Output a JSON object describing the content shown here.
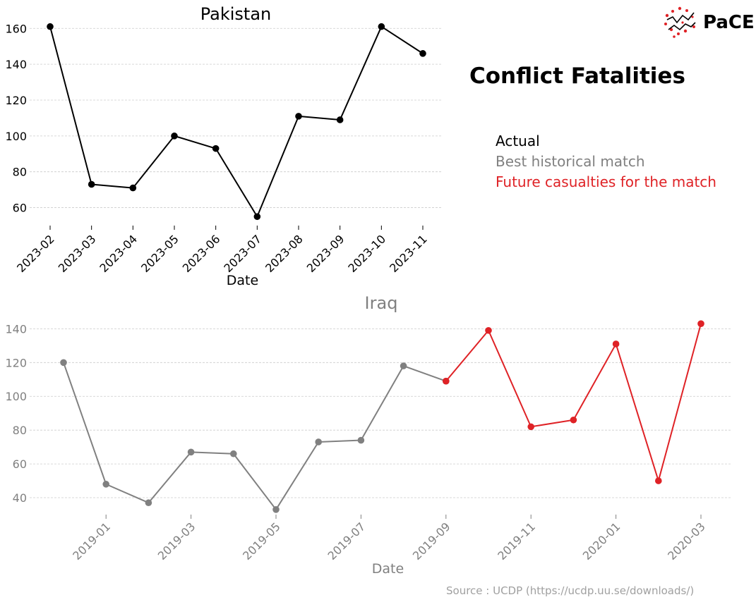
{
  "header": {
    "title": "Conflict Fatalities",
    "logo_text": "PaCE",
    "source": "Source : UCDP (https://ucdp.uu.se/downloads/)"
  },
  "legend": {
    "items": [
      {
        "label": "Actual",
        "color": "#000000"
      },
      {
        "label": "Best historical match",
        "color": "#808080"
      },
      {
        "label": "Future casualties for the match",
        "color": "#df2226"
      }
    ]
  },
  "colors": {
    "actual": "#000000",
    "match": "#808080",
    "future": "#df2226",
    "grid": "#cccccc"
  },
  "chart_data": [
    {
      "type": "line",
      "title": "Pakistan",
      "xlabel": "Date",
      "ylabel": "",
      "x_ticks": [
        "2023-02",
        "2023-03",
        "2023-04",
        "2023-05",
        "2023-06",
        "2023-07",
        "2023-08",
        "2023-09",
        "2023-10",
        "2023-11"
      ],
      "y_ticks": [
        60,
        80,
        100,
        120,
        140,
        160
      ],
      "ylim": [
        50,
        166
      ],
      "grid": "horizontal",
      "series": [
        {
          "color": "#000000",
          "x": [
            "2023-02",
            "2023-03",
            "2023-04",
            "2023-05",
            "2023-06",
            "2023-07",
            "2023-08",
            "2023-09",
            "2023-10",
            "2023-11"
          ],
          "values": [
            161,
            73,
            71,
            100,
            93,
            55,
            111,
            109,
            161,
            146
          ]
        }
      ]
    },
    {
      "type": "line",
      "title": "Iraq",
      "xlabel": "Date",
      "ylabel": "",
      "x_ticks": [
        "2019-01",
        "2019-03",
        "2019-05",
        "2019-07",
        "2019-09",
        "2019-11",
        "2020-01",
        "2020-03"
      ],
      "y_ticks": [
        40,
        60,
        80,
        100,
        120,
        140
      ],
      "ylim": [
        30,
        146
      ],
      "grid": "horizontal",
      "series": [
        {
          "color": "#808080",
          "x": [
            "2018-12",
            "2019-01",
            "2019-02",
            "2019-03",
            "2019-04",
            "2019-05",
            "2019-06",
            "2019-07",
            "2019-08",
            "2019-09"
          ],
          "values": [
            120,
            48,
            37,
            67,
            66,
            33,
            73,
            74,
            118,
            109
          ]
        },
        {
          "color": "#df2226",
          "x": [
            "2019-09",
            "2019-10",
            "2019-11",
            "2019-12",
            "2020-01",
            "2020-02",
            "2020-03"
          ],
          "values": [
            109,
            139,
            82,
            86,
            131,
            50,
            143
          ]
        }
      ]
    }
  ]
}
